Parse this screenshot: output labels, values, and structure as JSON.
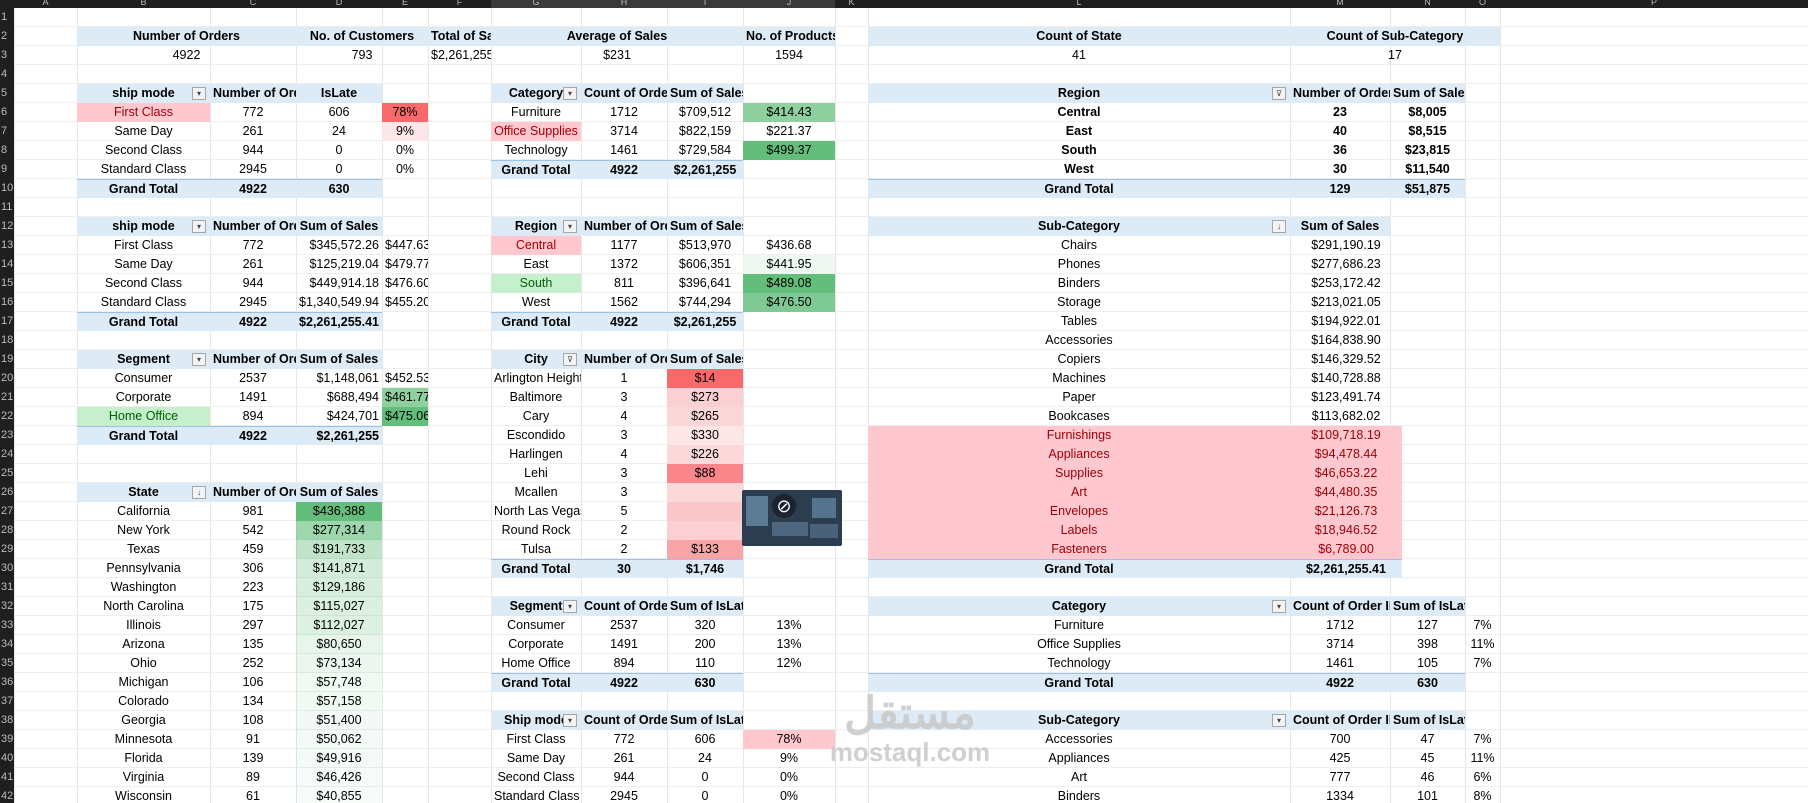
{
  "colors": {
    "red": "#f8696b",
    "red_light": "#ffc7ce",
    "red_text": "#9c0006",
    "green": "#63be7b",
    "green_light": "#c6efce",
    "green_text": "#006100",
    "header_bg": "#ddebf7"
  },
  "column_letters": [
    "A",
    "B",
    "C",
    "D",
    "E",
    "F",
    "G",
    "H",
    "I",
    "J",
    "K",
    "L",
    "M",
    "N",
    "O",
    "P"
  ],
  "row_numbers": [
    "1",
    "2",
    "3",
    "4",
    "5",
    "6",
    "7",
    "8",
    "9",
    "10",
    "11",
    "12",
    "13",
    "14",
    "15",
    "16",
    "17",
    "18",
    "19",
    "20",
    "21",
    "22",
    "23",
    "24",
    "25",
    "26",
    "27",
    "28",
    "29",
    "30",
    "31",
    "32",
    "33",
    "34",
    "35",
    "36",
    "37",
    "38",
    "39",
    "40",
    "41",
    "42"
  ],
  "kpis": {
    "orders": {
      "label": "Number of Orders",
      "value": "4922"
    },
    "customers": {
      "label": "No. of Customers",
      "value": "793"
    },
    "sales": {
      "label": "Total of Sales",
      "value": "$2,261,255"
    },
    "avg_sales": {
      "label": "Average of Sales",
      "value": "$231"
    },
    "products": {
      "label": "No. of  Products",
      "value": "1594"
    },
    "states": {
      "label": "Count of State",
      "value": "41"
    },
    "subcats": {
      "label": "Count of Sub-Category",
      "value": "17"
    }
  },
  "shipmode_late": {
    "headers": [
      "ship mode",
      "Number of Orders",
      "IsLate"
    ],
    "rows": [
      [
        "First Class",
        "772",
        "606",
        "78%"
      ],
      [
        "Same Day",
        "261",
        "24",
        "9%"
      ],
      [
        "Second Class",
        "944",
        "0",
        "0%"
      ],
      [
        "Standard Class",
        "2945",
        "0",
        "0%"
      ]
    ],
    "total": [
      "Grand Total",
      "4922",
      "630"
    ]
  },
  "category_sales": {
    "headers": [
      "Category",
      "Count of Order",
      "Sum of Sales"
    ],
    "rows": [
      [
        "Furniture",
        "1712",
        "$709,512",
        "$414.43"
      ],
      [
        "Office Supplies",
        "3714",
        "$822,159",
        "$221.37"
      ],
      [
        "Technology",
        "1461",
        "$729,584",
        "$499.37"
      ]
    ],
    "total": [
      "Grand Total",
      "4922",
      "$2,261,255"
    ]
  },
  "region_counts": {
    "headers": [
      "Region",
      "Number of Orders",
      "Sum of Sales"
    ],
    "rows": [
      [
        "Central",
        "23",
        "$8,005"
      ],
      [
        "East",
        "40",
        "$8,515"
      ],
      [
        "South",
        "36",
        "$23,815"
      ],
      [
        "West",
        "30",
        "$11,540"
      ]
    ],
    "total": [
      "Grand Total",
      "129",
      "$51,875"
    ]
  },
  "shipmode_sales": {
    "headers": [
      "ship mode",
      "Number of Orders",
      "Sum of Sales"
    ],
    "rows": [
      [
        "First Class",
        "772",
        "$345,572.26",
        "$447.63"
      ],
      [
        "Same Day",
        "261",
        "$125,219.04",
        "$479.77"
      ],
      [
        "Second Class",
        "944",
        "$449,914.18",
        "$476.60"
      ],
      [
        "Standard Class",
        "2945",
        "$1,340,549.94",
        "$455.20"
      ]
    ],
    "total": [
      "Grand Total",
      "4922",
      "$2,261,255.41"
    ]
  },
  "region_sales": {
    "headers": [
      "Region",
      "Number of Order",
      "Sum of Sales"
    ],
    "rows": [
      [
        "Central",
        "1177",
        "$513,970",
        "$436.68"
      ],
      [
        "East",
        "1372",
        "$606,351",
        "$441.95"
      ],
      [
        "South",
        "811",
        "$396,641",
        "$489.08"
      ],
      [
        "West",
        "1562",
        "$744,294",
        "$476.50"
      ]
    ],
    "total": [
      "Grand Total",
      "4922",
      "$2,261,255"
    ]
  },
  "subcat_sales": {
    "headers": [
      "Sub-Category",
      "Sum of Sales"
    ],
    "rows": [
      [
        "Chairs",
        "$291,190.19"
      ],
      [
        "Phones",
        "$277,686.23"
      ],
      [
        "Binders",
        "$253,172.42"
      ],
      [
        "Storage",
        "$213,021.05"
      ],
      [
        "Tables",
        "$194,922.01"
      ],
      [
        "Accessories",
        "$164,838.90"
      ],
      [
        "Copiers",
        "$146,329.52"
      ],
      [
        "Machines",
        "$140,728.88"
      ],
      [
        "Paper",
        "$123,491.74"
      ],
      [
        "Bookcases",
        "$113,682.02"
      ],
      [
        "Furnishings",
        "$109,718.19"
      ],
      [
        "Appliances",
        "$94,478.44"
      ],
      [
        "Supplies",
        "$46,653.22"
      ],
      [
        "Art",
        "$44,480.35"
      ],
      [
        "Envelopes",
        "$21,126.73"
      ],
      [
        "Labels",
        "$18,946.52"
      ],
      [
        "Fasteners",
        "$6,789.00"
      ]
    ],
    "total": [
      "Grand Total",
      "$2,261,255.41"
    ]
  },
  "segment_sales": {
    "headers": [
      "Segment",
      "Number of Orders",
      "Sum of Sales"
    ],
    "rows": [
      [
        "Consumer",
        "2537",
        "$1,148,061",
        "$452.53"
      ],
      [
        "Corporate",
        "1491",
        "$688,494",
        "$461.77"
      ],
      [
        "Home Office",
        "894",
        "$424,701",
        "$475.06"
      ]
    ],
    "total": [
      "Grand Total",
      "4922",
      "$2,261,255"
    ]
  },
  "city_sales": {
    "headers": [
      "City",
      "Number of Order",
      "Sum of Sales"
    ],
    "rows": [
      [
        "Arlington Heights",
        "1",
        "$14"
      ],
      [
        "Baltimore",
        "3",
        "$273"
      ],
      [
        "Cary",
        "4",
        "$265"
      ],
      [
        "Escondido",
        "3",
        "$330"
      ],
      [
        "Harlingen",
        "4",
        "$226"
      ],
      [
        "Lehi",
        "3",
        "$88"
      ],
      [
        "Mcallen",
        "3",
        ""
      ],
      [
        "North Las Vegas",
        "5",
        ""
      ],
      [
        "Round Rock",
        "2",
        ""
      ],
      [
        "Tulsa",
        "2",
        "$133"
      ]
    ],
    "total": [
      "Grand Total",
      "30",
      "$1,746"
    ]
  },
  "state_sales": {
    "headers": [
      "State",
      "Number of Orders",
      "Sum of Sales"
    ],
    "rows": [
      [
        "California",
        "981",
        "$436,388"
      ],
      [
        "New York",
        "542",
        "$277,314"
      ],
      [
        "Texas",
        "459",
        "$191,733"
      ],
      [
        "Pennsylvania",
        "306",
        "$141,871"
      ],
      [
        "Washington",
        "223",
        "$129,186"
      ],
      [
        "North Carolina",
        "175",
        "$115,027"
      ],
      [
        "Illinois",
        "297",
        "$112,027"
      ],
      [
        "Arizona",
        "135",
        "$80,650"
      ],
      [
        "Ohio",
        "252",
        "$73,134"
      ],
      [
        "Michigan",
        "106",
        "$57,748"
      ],
      [
        "Colorado",
        "134",
        "$57,158"
      ],
      [
        "Georgia",
        "108",
        "$51,400"
      ],
      [
        "Minnesota",
        "91",
        "$50,062"
      ],
      [
        "Florida",
        "139",
        "$49,916"
      ],
      [
        "Virginia",
        "89",
        "$46,426"
      ],
      [
        "Wisconsin",
        "61",
        "$40,855"
      ]
    ]
  },
  "segment_late": {
    "headers": [
      "Segment",
      "Count of Order II",
      "Sum of IsLate"
    ],
    "rows": [
      [
        "Consumer",
        "2537",
        "320",
        "13%"
      ],
      [
        "Corporate",
        "1491",
        "200",
        "13%"
      ],
      [
        "Home Office",
        "894",
        "110",
        "12%"
      ]
    ],
    "total": [
      "Grand Total",
      "4922",
      "630"
    ]
  },
  "shipmode_late2": {
    "headers": [
      "Ship mode",
      "Count of Order II",
      "Sum of IsLate"
    ],
    "rows": [
      [
        "First Class",
        "772",
        "606",
        "78%"
      ],
      [
        "Same Day",
        "261",
        "24",
        "9%"
      ],
      [
        "Second Class",
        "944",
        "0",
        "0%"
      ],
      [
        "Standard Class",
        "2945",
        "0",
        "0%"
      ]
    ]
  },
  "category_late": {
    "headers": [
      "Category",
      "Count of Order ID",
      "Sum of IsLate"
    ],
    "rows": [
      [
        "Furniture",
        "1712",
        "127",
        "7%"
      ],
      [
        "Office Supplies",
        "3714",
        "398",
        "11%"
      ],
      [
        "Technology",
        "1461",
        "105",
        "7%"
      ]
    ],
    "total": [
      "Grand Total",
      "4922",
      "630"
    ]
  },
  "subcat_late": {
    "headers": [
      "Sub-Category",
      "Count of Order ID",
      "Sum of IsLate"
    ],
    "rows": [
      [
        "Accessories",
        "700",
        "47",
        "7%"
      ],
      [
        "Appliances",
        "425",
        "45",
        "11%"
      ],
      [
        "Art",
        "777",
        "46",
        "6%"
      ],
      [
        "Binders",
        "1334",
        "101",
        "8%"
      ]
    ]
  },
  "watermark": {
    "arabic": "مستقل",
    "latin": "mostaql.com"
  }
}
